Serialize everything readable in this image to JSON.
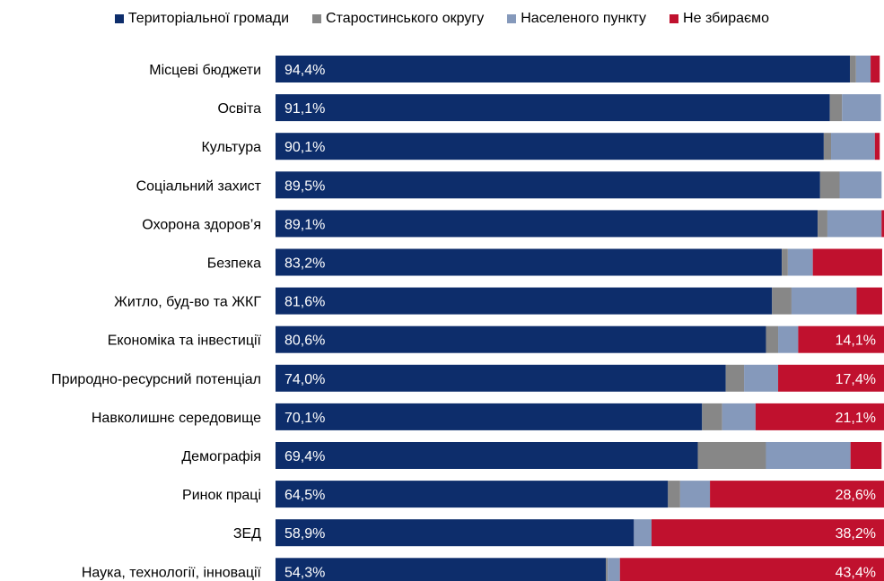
{
  "chart_data": {
    "type": "bar",
    "orientation": "horizontal",
    "stacked": true,
    "legend_position": "top",
    "grid": false,
    "xlim": [
      0,
      100
    ],
    "colors": {
      "territorial": "#0d2d6b",
      "starosta": "#878787",
      "settlement": "#8599bb",
      "not_collected": "#c0112e",
      "label_text": "#ffffff"
    },
    "series": [
      {
        "key": "territorial",
        "name": "Територіальної громади"
      },
      {
        "key": "starosta",
        "name": "Старостинського округу"
      },
      {
        "key": "settlement",
        "name": "Населеного пункту"
      },
      {
        "key": "not_collected",
        "name": "Не збираємо"
      }
    ],
    "categories": [
      "Місцеві бюджети",
      "Освіта",
      "Культура",
      "Соціальний захист",
      "Охорона здоров’я",
      "Безпека",
      "Житло, буд-во та ЖКГ",
      "Економіка та інвестиції",
      "Природно-ресурсний потенціал",
      "Навколишнє середовище",
      "Демографія",
      "Ринок праці",
      "ЗЕД",
      "Наука, технології, інновації"
    ],
    "values": {
      "territorial": [
        94.4,
        91.1,
        90.1,
        89.5,
        89.1,
        83.2,
        81.6,
        80.6,
        74.0,
        70.1,
        69.4,
        64.5,
        58.9,
        54.3
      ],
      "starosta": [
        1.0,
        2.0,
        1.2,
        3.2,
        1.6,
        1.0,
        3.2,
        2.0,
        3.0,
        3.3,
        11.2,
        2.0,
        0,
        0.3
      ],
      "settlement": [
        2.4,
        6.4,
        7.2,
        6.9,
        8.9,
        4.1,
        10.7,
        3.3,
        5.6,
        5.5,
        13.9,
        4.9,
        2.9,
        2.0
      ],
      "not_collected": [
        1.5,
        0,
        0.8,
        0,
        1.9,
        11.4,
        4.2,
        14.1,
        17.4,
        21.1,
        5.1,
        28.6,
        38.2,
        43.4
      ]
    },
    "territorial_labels": [
      "94,4%",
      "91,1%",
      "90,1%",
      "89,5%",
      "89,1%",
      "83,2%",
      "81,6%",
      "80,6%",
      "74,0%",
      "70,1%",
      "69,4%",
      "64,5%",
      "58,9%",
      "54,3%"
    ],
    "not_collected_labels": [
      "",
      "",
      "",
      "",
      "",
      "",
      "",
      "14,1%",
      "17,4%",
      "21,1%",
      "",
      "28,6%",
      "38,2%",
      "43,4%"
    ]
  }
}
